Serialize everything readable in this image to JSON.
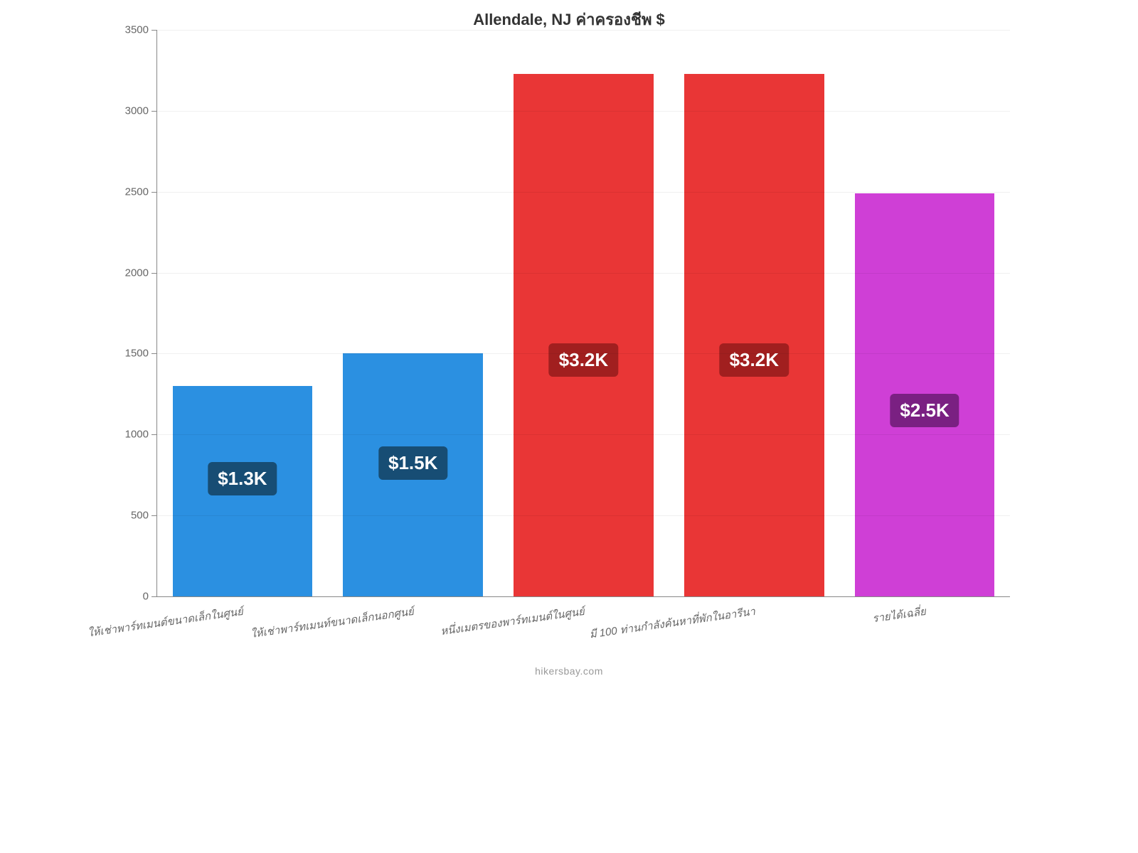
{
  "chart": {
    "type": "bar",
    "title": "Allendale, NJ ค่าครองชีพ $",
    "title_fontsize": 22,
    "title_color": "#333333",
    "background_color": "#ffffff",
    "axis_color": "#888888",
    "grid_color": "rgba(0,0,0,0.06)",
    "ylim_min": 0,
    "ylim_max": 3500,
    "ytick_step": 500,
    "yticks": [
      0,
      500,
      1000,
      1500,
      2000,
      2500,
      3000,
      3500
    ],
    "y_label_color": "#666666",
    "y_label_fontsize": 15,
    "x_label_color": "#666666",
    "x_label_fontsize": 15,
    "x_label_rotate_deg": -8,
    "bar_width_pct": 82,
    "value_badge_fontsize": 26,
    "value_badge_radius": 6,
    "categories": [
      "ให้เช่าพาร์ทเมนต์ขนาดเล็กในศูนย์",
      "ให้เช่าพาร์ทเมนท์ขนาดเล็กนอกศูนย์",
      "หนึ่งเมตรของพาร์ทเมนต์ในศูนย์",
      "มี 100 ท่านกำลังค้นหาที่พักในอารีนา",
      "รายได้เฉลี่ย"
    ],
    "values": [
      1300,
      1500,
      3228,
      3228,
      2490
    ],
    "value_labels": [
      "$1.3K",
      "$1.5K",
      "$3.2K",
      "$3.2K",
      "$2.5K"
    ],
    "bar_colors": [
      "#2b90e1",
      "#2b90e1",
      "#e93636",
      "#e93636",
      "#cf3fd6"
    ],
    "badge_colors": [
      "#174d74",
      "#174d74",
      "#a11f1f",
      "#a11f1f",
      "#7a2082"
    ],
    "badge_position_pct_from_bottom": [
      48,
      48,
      42,
      42,
      42
    ],
    "footer": "hikersbay.com",
    "footer_color": "#999999",
    "footer_fontsize": 14
  }
}
